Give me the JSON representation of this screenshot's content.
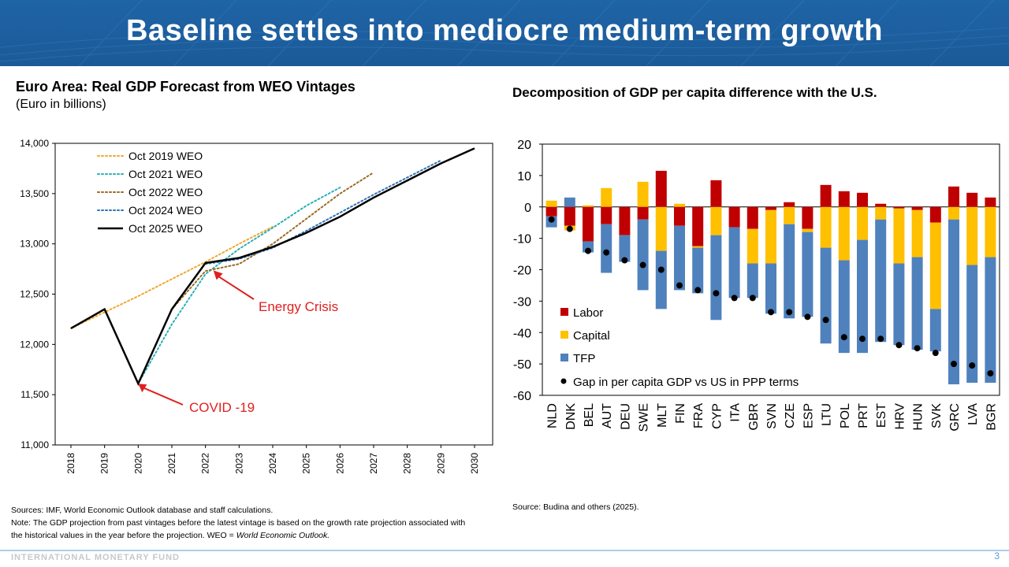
{
  "slide": {
    "title": "Baseline settles into mediocre medium-term growth",
    "footer_org": "INTERNATIONAL MONETARY FUND",
    "page_number": "3"
  },
  "colors": {
    "banner": "#1f64a6",
    "labor": "#c00000",
    "capital": "#ffc000",
    "tfp": "#4f81bd",
    "annotation": "#e02020"
  },
  "left_chart": {
    "title": "Euro Area: Real GDP Forecast from WEO Vintages",
    "subtitle": "(Euro in billions)",
    "note_sources": "Sources: IMF, World Economic Outlook database and staff calculations.",
    "note_text": "Note: The GDP projection from past vintages before the latest vintage is based on the growth rate projection associated with the historical values in the year before the projection. WEO = ",
    "note_italic": "World Economic Outlook."
  },
  "right_chart": {
    "title": "Decomposition of GDP per capita difference with the U.S.",
    "source": "Source: Budina and others (2025)."
  },
  "chart_data": [
    {
      "type": "line",
      "title": "Euro Area: Real GDP Forecast from WEO Vintages",
      "ylabel": "Euro in billions",
      "ylim": [
        11000,
        14000
      ],
      "yticks": [
        11000,
        11500,
        12000,
        12500,
        13000,
        13500,
        14000
      ],
      "ytick_labels": [
        "11,000",
        "11,500",
        "12,000",
        "12,500",
        "13,000",
        "13,500",
        "14,000"
      ],
      "x": [
        2018,
        2019,
        2020,
        2021,
        2022,
        2023,
        2024,
        2025,
        2026,
        2027,
        2028,
        2029,
        2030
      ],
      "xtick_labels": [
        "2018",
        "2019",
        "2020",
        "2021",
        "2022",
        "2023",
        "2024",
        "2025",
        "2026",
        "2027",
        "2028",
        "2029",
        "2030"
      ],
      "legend_position": "top-left",
      "series": [
        {
          "name": "Oct 2019 WEO",
          "style": "dotted",
          "color": "#f0a830",
          "x": [
            2018,
            2019,
            2020,
            2021,
            2022,
            2023,
            2024
          ],
          "y": [
            12160,
            12320,
            12480,
            12650,
            12820,
            13000,
            13170
          ]
        },
        {
          "name": "Oct 2021 WEO",
          "style": "dotted",
          "color": "#2ab0b8",
          "x": [
            2020,
            2021,
            2022,
            2023,
            2024,
            2025,
            2026
          ],
          "y": [
            11610,
            12200,
            12700,
            12950,
            13160,
            13380,
            13560
          ]
        },
        {
          "name": "Oct 2022 WEO",
          "style": "dotted",
          "color": "#9a6a28",
          "x": [
            2021,
            2022,
            2023,
            2024,
            2025,
            2026,
            2027
          ],
          "y": [
            12350,
            12730,
            12800,
            13000,
            13250,
            13500,
            13710
          ]
        },
        {
          "name": "Oct 2024 WEO",
          "style": "dotted",
          "color": "#2e73b8",
          "x": [
            2022,
            2023,
            2024,
            2025,
            2026,
            2027,
            2028,
            2029
          ],
          "y": [
            12800,
            12850,
            12960,
            13130,
            13310,
            13490,
            13660,
            13830
          ]
        },
        {
          "name": "Oct 2025 WEO",
          "style": "solid",
          "color": "#000000",
          "x": [
            2018,
            2019,
            2020,
            2021,
            2022,
            2023,
            2024,
            2025,
            2026,
            2027,
            2028,
            2029,
            2030
          ],
          "y": [
            12160,
            12350,
            11610,
            12350,
            12810,
            12860,
            12970,
            13110,
            13270,
            13460,
            13630,
            13800,
            13950
          ]
        }
      ],
      "annotations": [
        {
          "text": "Energy Crisis",
          "x": 2022,
          "y": 12720
        },
        {
          "text": "COVID -19",
          "x": 2020,
          "y": 11570
        }
      ]
    },
    {
      "type": "bar",
      "stacked": true,
      "title": "Decomposition of GDP per capita difference with the U.S.",
      "ylim": [
        -60,
        20
      ],
      "yticks": [
        20,
        10,
        0,
        -10,
        -20,
        -30,
        -40,
        -50,
        -60
      ],
      "ytick_labels": [
        "20",
        "10",
        "0",
        "-10",
        "-20",
        "-30",
        "-40",
        "-50",
        "-60"
      ],
      "legend_position": "bottom-left",
      "categories": [
        "NLD",
        "DNK",
        "BEL",
        "AUT",
        "DEU",
        "SWE",
        "MLT",
        "FIN",
        "FRA",
        "CYP",
        "ITA",
        "GBR",
        "SVN",
        "CZE",
        "ESP",
        "LTU",
        "POL",
        "PRT",
        "EST",
        "HRV",
        "HUN",
        "SVK",
        "GRC",
        "LVA",
        "BGR"
      ],
      "series": [
        {
          "name": "Labor",
          "values": [
            -3.0,
            -6.0,
            -11.0,
            -5.5,
            -9.0,
            -4.0,
            11.5,
            -6.0,
            -12.5,
            8.5,
            -6.5,
            -7.0,
            -1.0,
            1.5,
            -7.0,
            7.0,
            5.0,
            4.5,
            1.0,
            -0.5,
            -1.0,
            -5.0,
            6.5,
            4.5,
            3.0
          ]
        },
        {
          "name": "Capital",
          "values": [
            2.0,
            -1.5,
            0.5,
            6.0,
            0.0,
            8.0,
            -14.0,
            1.0,
            -0.5,
            -9.0,
            0.0,
            -11.0,
            -17.0,
            -5.5,
            -1.0,
            -13.0,
            -17.0,
            -10.5,
            -4.0,
            -17.5,
            -15.0,
            -27.5,
            -4.0,
            -18.5,
            -16.0
          ]
        },
        {
          "name": "TFP",
          "values": [
            -3.5,
            3.0,
            -3.5,
            -15.5,
            -8.5,
            -22.5,
            -18.5,
            -20.5,
            -14.5,
            -27.0,
            -22.5,
            -11.0,
            -16.0,
            -30.0,
            -27.0,
            -30.5,
            -29.5,
            -36.0,
            -39.0,
            -26.0,
            -29.5,
            -13.5,
            -52.5,
            -37.5,
            -40.0
          ]
        },
        {
          "name": "Gap in per capita GDP vs US in PPP terms",
          "type": "scatter",
          "values": [
            -4.0,
            -7.0,
            -14.0,
            -14.5,
            -17.0,
            -18.5,
            -20.0,
            -25.0,
            -26.5,
            -27.5,
            -29.0,
            -29.0,
            -33.5,
            -33.5,
            -35.0,
            -36.0,
            -41.5,
            -42.0,
            -42.0,
            -44.0,
            -45.0,
            -46.5,
            -50.0,
            -50.5,
            -53.0
          ]
        }
      ]
    }
  ]
}
